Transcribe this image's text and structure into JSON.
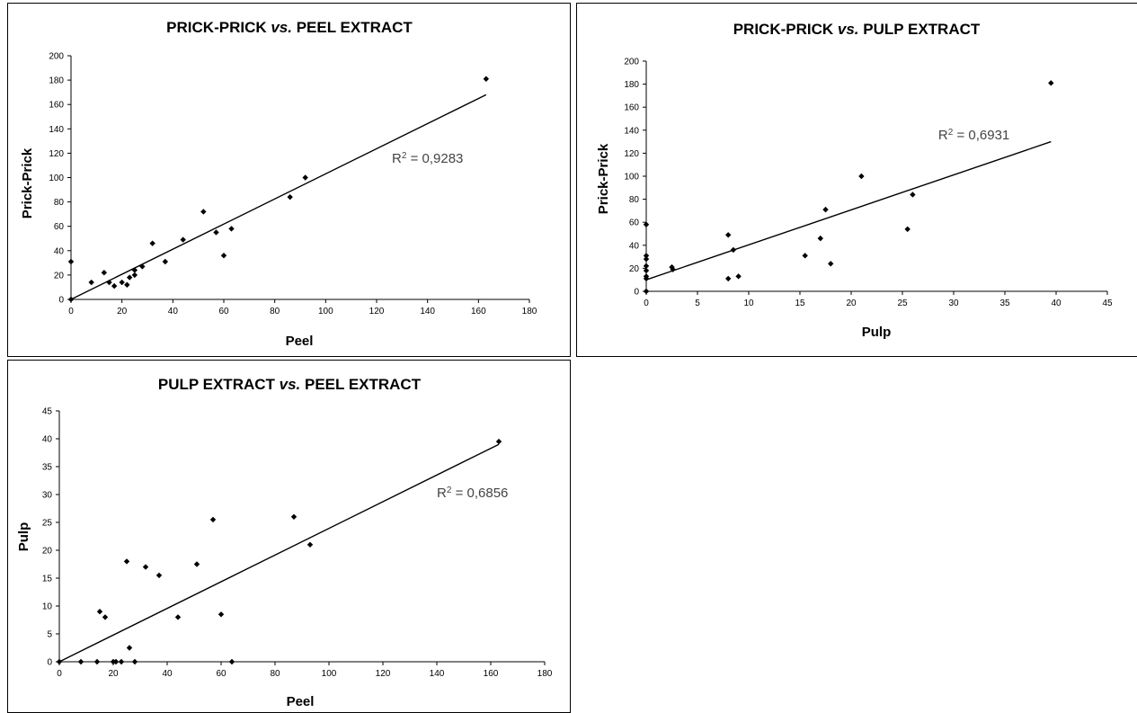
{
  "chart_data": [
    {
      "id": "c1",
      "type": "scatter",
      "title_a": "PRICK-PRICK ",
      "title_b": "vs.",
      "title_c": " PEEL EXTRACT",
      "xlabel": "Peel",
      "ylabel": "Prick-Prick",
      "xlim": [
        0,
        180
      ],
      "xticks": [
        0,
        20,
        40,
        60,
        80,
        100,
        120,
        140,
        160,
        180
      ],
      "ylim": [
        0,
        200
      ],
      "yticks": [
        0,
        20,
        40,
        60,
        80,
        100,
        120,
        140,
        160,
        180,
        200
      ],
      "grid": false,
      "points": [
        [
          0,
          31
        ],
        [
          0,
          0
        ],
        [
          8,
          14
        ],
        [
          13,
          22
        ],
        [
          15,
          14
        ],
        [
          17,
          11
        ],
        [
          20,
          14
        ],
        [
          22,
          12
        ],
        [
          23,
          18
        ],
        [
          25,
          24
        ],
        [
          25,
          20
        ],
        [
          28,
          27
        ],
        [
          32,
          46
        ],
        [
          37,
          31
        ],
        [
          44,
          49
        ],
        [
          52,
          72
        ],
        [
          57,
          55
        ],
        [
          60,
          36
        ],
        [
          63,
          58
        ],
        [
          86,
          84
        ],
        [
          92,
          100
        ],
        [
          163,
          181
        ]
      ],
      "trendline": {
        "x": [
          0,
          163
        ],
        "y": [
          0,
          168
        ]
      },
      "annotation_base": "R",
      "annotation_sup": "2",
      "annotation_text": " = 0,9283",
      "annotation_at": [
        126,
        112
      ]
    },
    {
      "id": "c2",
      "type": "scatter",
      "title_a": "PRICK-PRICK ",
      "title_b": "vs.",
      "title_c": " PULP EXTRACT",
      "xlabel": "Pulp",
      "ylabel": "Prick-Prick",
      "xlim": [
        0,
        45
      ],
      "xticks": [
        0,
        5,
        10,
        15,
        20,
        25,
        30,
        35,
        40,
        45
      ],
      "ylim": [
        0,
        200
      ],
      "yticks": [
        0,
        20,
        40,
        60,
        80,
        100,
        120,
        140,
        160,
        180,
        200
      ],
      "grid": false,
      "points": [
        [
          0,
          58
        ],
        [
          0,
          31
        ],
        [
          0,
          28
        ],
        [
          0,
          22
        ],
        [
          0,
          18
        ],
        [
          0,
          13
        ],
        [
          0,
          11
        ],
        [
          0,
          0
        ],
        [
          2.5,
          21
        ],
        [
          2.6,
          19
        ],
        [
          8,
          49
        ],
        [
          8,
          11
        ],
        [
          8.5,
          36
        ],
        [
          9,
          13
        ],
        [
          15.5,
          31
        ],
        [
          17,
          46
        ],
        [
          17.5,
          71
        ],
        [
          18,
          24
        ],
        [
          21,
          100
        ],
        [
          25.5,
          54
        ],
        [
          26,
          84
        ],
        [
          39.5,
          181
        ]
      ],
      "trendline": {
        "x": [
          0,
          39.5
        ],
        "y": [
          10,
          130
        ]
      },
      "annotation_base": "R",
      "annotation_sup": "2",
      "annotation_text": " = 0,6931",
      "annotation_at": [
        28.5,
        132
      ]
    },
    {
      "id": "c3",
      "type": "scatter",
      "title_a": "PULP EXTRACT ",
      "title_b": "vs.",
      "title_c": " PEEL EXTRACT",
      "xlabel": "Peel",
      "ylabel": "Pulp",
      "xlim": [
        0,
        180
      ],
      "xticks": [
        0,
        20,
        40,
        60,
        80,
        100,
        120,
        140,
        160,
        180
      ],
      "ylim": [
        0,
        45
      ],
      "yticks": [
        0,
        5,
        10,
        15,
        20,
        25,
        30,
        35,
        40,
        45
      ],
      "grid": false,
      "points": [
        [
          0,
          0
        ],
        [
          8,
          0
        ],
        [
          14,
          0
        ],
        [
          15,
          9
        ],
        [
          17,
          8
        ],
        [
          20,
          0
        ],
        [
          21,
          0
        ],
        [
          23,
          0
        ],
        [
          25,
          18
        ],
        [
          26,
          2.5
        ],
        [
          28,
          0
        ],
        [
          32,
          17
        ],
        [
          37,
          15.5
        ],
        [
          44,
          8
        ],
        [
          51,
          17.5
        ],
        [
          57,
          25.5
        ],
        [
          60,
          8.5
        ],
        [
          64,
          0
        ],
        [
          87,
          26
        ],
        [
          93,
          21
        ],
        [
          163,
          39.5
        ]
      ],
      "trendline": {
        "x": [
          0,
          163
        ],
        "y": [
          0,
          39
        ]
      },
      "annotation_base": "R",
      "annotation_sup": "2",
      "annotation_text": " = 0,6856",
      "annotation_at": [
        140,
        29.5
      ]
    }
  ]
}
